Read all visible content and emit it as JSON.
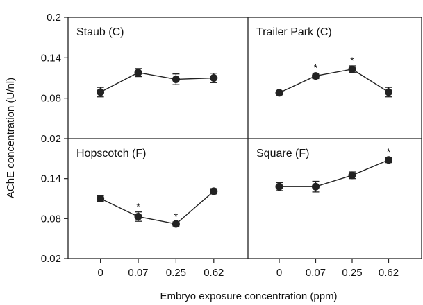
{
  "chart_data": {
    "type": "line",
    "xlabel": "Embryo exposure concentration (ppm)",
    "ylabel": "AChE concentration (U/nl)",
    "categories": [
      "0",
      "0.07",
      "0.25",
      "0.62"
    ],
    "ylim": [
      0.02,
      0.2
    ],
    "yticks": [
      "0.2",
      "0.14",
      "0.08",
      "0.02"
    ],
    "panels": [
      {
        "title": "Staub (C)",
        "values": [
          0.089,
          0.118,
          0.108,
          0.11
        ],
        "errors": [
          0.007,
          0.006,
          0.008,
          0.007
        ],
        "significant": [
          false,
          false,
          false,
          false
        ]
      },
      {
        "title": "Trailer Park (C)",
        "values": [
          0.088,
          0.113,
          0.123,
          0.089
        ],
        "errors": [
          0.003,
          0.004,
          0.005,
          0.007
        ],
        "significant": [
          false,
          true,
          true,
          false
        ]
      },
      {
        "title": "Hopscotch (F)",
        "values": [
          0.11,
          0.083,
          0.072,
          0.121
        ],
        "errors": [
          0.004,
          0.007,
          0.003,
          0.004
        ],
        "significant": [
          false,
          true,
          true,
          false
        ]
      },
      {
        "title": "Square (F)",
        "values": [
          0.128,
          0.128,
          0.145,
          0.168
        ],
        "errors": [
          0.006,
          0.008,
          0.005,
          0.004
        ],
        "significant": [
          false,
          false,
          false,
          true
        ]
      }
    ],
    "significance_marker": "*",
    "grid": false,
    "colors": {
      "marker": "#222222",
      "line": "#222222",
      "frame": "#222222"
    }
  }
}
